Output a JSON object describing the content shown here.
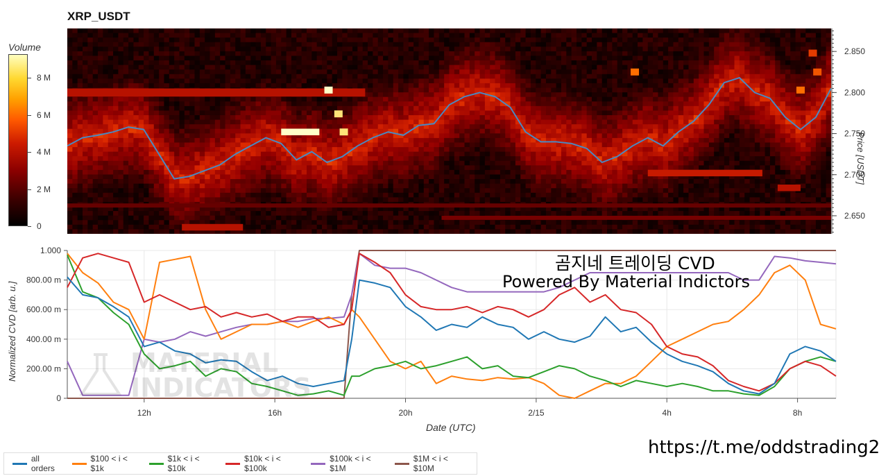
{
  "title": "XRP_USDT",
  "colorbar": {
    "title": "Volume",
    "ticks": [
      {
        "label": "8 M",
        "value": 8
      },
      {
        "label": "6 M",
        "value": 6
      },
      {
        "label": "4 M",
        "value": 4
      },
      {
        "label": "2 M",
        "value": 2
      },
      {
        "label": "0",
        "value": 0
      }
    ],
    "max": 9.2
  },
  "watermark": {
    "line1": "MATERIAL",
    "line2": "INDICATORS"
  },
  "annotations": {
    "line1": "곰지네 트레이딩 CVD",
    "line2": "Powered By Material Indictors",
    "url": "https://t.me/oddstrading2"
  },
  "colors": {
    "all_orders": "#1f77b4",
    "s100": "#ff7f0e",
    "s1k": "#2ca02c",
    "s10k": "#d62728",
    "s100k": "#9467bd",
    "s1m": "#8c564b",
    "price": "#4a88c2"
  },
  "chart_data": [
    {
      "type": "heatmap",
      "title": "XRP_USDT",
      "ylabel": "Price [USDT]",
      "ylim": [
        2.628,
        2.878
      ],
      "yticks": [
        {
          "label": "2.650",
          "value": 2.65
        },
        {
          "label": "2.700",
          "value": 2.7
        },
        {
          "label": "2.750",
          "value": 2.75
        },
        {
          "label": "2.800",
          "value": 2.8
        },
        {
          "label": "2.850",
          "value": 2.85
        }
      ],
      "price_series": {
        "x": [
          0,
          2,
          4,
          6,
          8,
          10,
          12,
          14,
          16,
          18,
          20,
          22,
          24,
          26,
          28,
          30,
          32,
          34,
          36,
          38,
          40,
          42,
          44,
          46,
          48,
          50,
          52,
          54,
          56,
          58,
          60,
          62,
          64,
          66,
          68,
          70,
          72,
          74,
          76,
          78,
          80,
          82,
          84,
          86,
          88,
          90,
          92,
          94,
          96,
          98,
          100
        ],
        "y": [
          2.735,
          2.745,
          2.748,
          2.752,
          2.758,
          2.755,
          2.725,
          2.695,
          2.698,
          2.705,
          2.712,
          2.725,
          2.735,
          2.745,
          2.738,
          2.718,
          2.728,
          2.715,
          2.722,
          2.735,
          2.745,
          2.752,
          2.748,
          2.76,
          2.762,
          2.785,
          2.795,
          2.8,
          2.795,
          2.782,
          2.752,
          2.74,
          2.74,
          2.738,
          2.732,
          2.715,
          2.722,
          2.735,
          2.745,
          2.735,
          2.752,
          2.765,
          2.785,
          2.812,
          2.818,
          2.8,
          2.793,
          2.77,
          2.755,
          2.77,
          2.805
        ]
      },
      "bands": [
        {
          "y0": 2.795,
          "y1": 2.805,
          "x0": 0,
          "x1": 39,
          "level": 0.55
        },
        {
          "y0": 2.756,
          "y1": 2.748,
          "x0": 28,
          "x1": 33,
          "level": 1.0
        },
        {
          "y0": 2.706,
          "y1": 2.698,
          "x0": 76,
          "x1": 91,
          "level": 0.6
        },
        {
          "y0": 2.688,
          "y1": 2.68,
          "x0": 93,
          "x1": 96,
          "level": 0.55
        },
        {
          "y0": 2.64,
          "y1": 2.632,
          "x0": 15,
          "x1": 23,
          "level": 0.55
        },
        {
          "y0": 2.65,
          "y1": 2.645,
          "x0": 49,
          "x1": 100,
          "level": 0.35
        },
        {
          "y0": 2.665,
          "y1": 2.66,
          "x0": 0,
          "x1": 100,
          "level": 0.3
        }
      ],
      "hotspots": [
        {
          "x": 34.2,
          "y": 2.803,
          "level": 1.0
        },
        {
          "x": 35.5,
          "y": 2.774,
          "level": 0.95
        },
        {
          "x": 36.2,
          "y": 2.752,
          "level": 0.95
        },
        {
          "x": 74.3,
          "y": 2.825,
          "level": 0.8
        },
        {
          "x": 96.0,
          "y": 2.803,
          "level": 0.8
        },
        {
          "x": 98.2,
          "y": 2.825,
          "level": 0.75
        },
        {
          "x": 97.6,
          "y": 2.848,
          "level": 0.7
        },
        {
          "x": 8.5,
          "y": 2.755,
          "level": 0.7
        }
      ]
    },
    {
      "type": "line",
      "xlabel": "Date (UTC)",
      "ylabel": "Normalized CVD [arb. u.]",
      "ylim": [
        0,
        1
      ],
      "xticks": [
        {
          "label": "12h",
          "value": 10
        },
        {
          "label": "16h",
          "value": 27
        },
        {
          "label": "20h",
          "value": 44
        },
        {
          "label": "2/15",
          "value": 61
        },
        {
          "label": "4h",
          "value": 78
        },
        {
          "label": "8h",
          "value": 95
        }
      ],
      "yticks": [
        {
          "label": "0",
          "value": 0
        },
        {
          "label": "200.00 m",
          "value": 0.2
        },
        {
          "label": "400.00 m",
          "value": 0.4
        },
        {
          "label": "600.00 m",
          "value": 0.6
        },
        {
          "label": "800.00 m",
          "value": 0.8
        },
        {
          "label": "1.000",
          "value": 1.0
        }
      ],
      "x": [
        0,
        2,
        4,
        6,
        8,
        10,
        12,
        14,
        16,
        18,
        20,
        22,
        24,
        26,
        28,
        30,
        32,
        34,
        36,
        37,
        38,
        40,
        42,
        44,
        46,
        48,
        50,
        52,
        54,
        56,
        58,
        60,
        62,
        64,
        66,
        68,
        70,
        72,
        74,
        76,
        78,
        80,
        82,
        84,
        86,
        88,
        90,
        92,
        94,
        96,
        98,
        100
      ],
      "series": [
        {
          "name": "all orders",
          "key": "all_orders",
          "values": [
            0.82,
            0.7,
            0.68,
            0.62,
            0.55,
            0.35,
            0.38,
            0.32,
            0.3,
            0.24,
            0.26,
            0.25,
            0.18,
            0.12,
            0.15,
            0.1,
            0.08,
            0.1,
            0.12,
            0.4,
            0.8,
            0.78,
            0.75,
            0.62,
            0.55,
            0.46,
            0.5,
            0.48,
            0.55,
            0.5,
            0.48,
            0.4,
            0.45,
            0.4,
            0.38,
            0.42,
            0.55,
            0.45,
            0.48,
            0.38,
            0.3,
            0.25,
            0.22,
            0.18,
            0.1,
            0.05,
            0.03,
            0.1,
            0.3,
            0.35,
            0.32,
            0.25
          ]
        },
        {
          "name": "$100 < i < $1k",
          "key": "s100",
          "values": [
            0.98,
            0.85,
            0.78,
            0.65,
            0.6,
            0.4,
            0.92,
            0.94,
            0.96,
            0.6,
            0.4,
            0.45,
            0.5,
            0.5,
            0.52,
            0.48,
            0.52,
            0.55,
            0.5,
            0.6,
            0.55,
            0.4,
            0.25,
            0.2,
            0.25,
            0.1,
            0.15,
            0.13,
            0.12,
            0.14,
            0.13,
            0.14,
            0.1,
            0.02,
            0.0,
            0.05,
            0.1,
            0.1,
            0.15,
            0.25,
            0.35,
            0.4,
            0.45,
            0.5,
            0.52,
            0.6,
            0.7,
            0.85,
            0.9,
            0.8,
            0.5,
            0.47
          ]
        },
        {
          "name": "$1k < i < $10k",
          "key": "s1k",
          "values": [
            0.97,
            0.72,
            0.68,
            0.58,
            0.5,
            0.3,
            0.2,
            0.22,
            0.25,
            0.15,
            0.2,
            0.18,
            0.1,
            0.08,
            0.05,
            0.02,
            0.03,
            0.05,
            0.02,
            0.15,
            0.15,
            0.2,
            0.22,
            0.25,
            0.2,
            0.22,
            0.25,
            0.28,
            0.2,
            0.22,
            0.15,
            0.14,
            0.18,
            0.22,
            0.2,
            0.15,
            0.12,
            0.08,
            0.12,
            0.1,
            0.08,
            0.1,
            0.08,
            0.05,
            0.05,
            0.03,
            0.02,
            0.08,
            0.2,
            0.25,
            0.28,
            0.25
          ]
        },
        {
          "name": "$10k < i < $100k",
          "key": "s10k",
          "values": [
            0.75,
            0.95,
            0.98,
            0.95,
            0.92,
            0.65,
            0.7,
            0.65,
            0.6,
            0.62,
            0.55,
            0.58,
            0.55,
            0.57,
            0.52,
            0.55,
            0.55,
            0.48,
            0.5,
            0.6,
            0.98,
            0.92,
            0.85,
            0.7,
            0.62,
            0.6,
            0.6,
            0.62,
            0.58,
            0.62,
            0.6,
            0.55,
            0.6,
            0.7,
            0.75,
            0.65,
            0.7,
            0.6,
            0.58,
            0.5,
            0.35,
            0.3,
            0.28,
            0.22,
            0.12,
            0.08,
            0.05,
            0.1,
            0.2,
            0.25,
            0.22,
            0.15
          ]
        },
        {
          "name": "$100k < i < $1M",
          "key": "s100k",
          "values": [
            0.25,
            0.02,
            0.02,
            0.02,
            0.02,
            0.4,
            0.38,
            0.4,
            0.45,
            0.42,
            0.45,
            0.48,
            0.5,
            0.5,
            0.52,
            0.52,
            0.54,
            0.54,
            0.55,
            0.7,
            0.98,
            0.9,
            0.88,
            0.88,
            0.85,
            0.8,
            0.75,
            0.72,
            0.72,
            0.72,
            0.72,
            0.72,
            0.72,
            0.75,
            0.8,
            0.85,
            0.85,
            0.85,
            0.85,
            0.85,
            0.85,
            0.85,
            0.85,
            0.85,
            0.85,
            0.8,
            0.8,
            0.96,
            0.95,
            0.93,
            0.92,
            0.91
          ]
        },
        {
          "name": "$1M < i < $10M",
          "key": "s1m",
          "values": [
            0,
            0,
            0,
            0,
            0,
            0,
            0,
            0,
            0,
            0,
            0,
            0,
            0,
            0,
            0,
            0,
            0,
            0,
            0,
            0.7,
            1,
            1,
            1,
            1,
            1,
            1,
            1,
            1,
            1,
            1,
            1,
            1,
            1,
            1,
            1,
            1,
            1,
            1,
            1,
            1,
            1,
            1,
            1,
            1,
            1,
            1,
            1,
            1,
            1,
            1,
            1,
            1
          ]
        }
      ]
    }
  ]
}
